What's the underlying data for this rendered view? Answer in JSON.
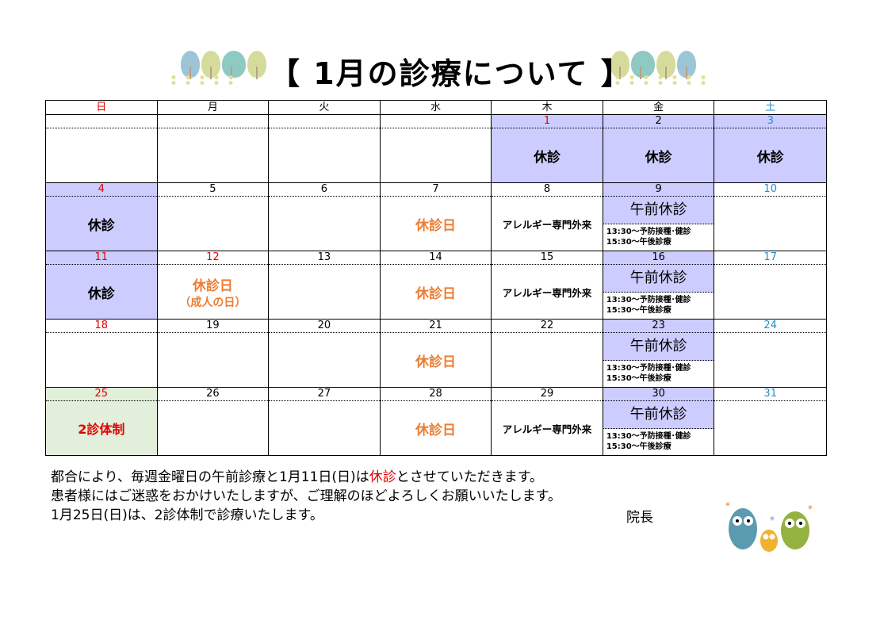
{
  "title": "【 1月の診療について 】",
  "weekdays": [
    {
      "label": "日",
      "color": "#e00000"
    },
    {
      "label": "月",
      "color": "#000"
    },
    {
      "label": "火",
      "color": "#000"
    },
    {
      "label": "水",
      "color": "#000"
    },
    {
      "label": "木",
      "color": "#000"
    },
    {
      "label": "金",
      "color": "#000"
    },
    {
      "label": "土",
      "color": "#1f8fd1"
    }
  ],
  "colors": {
    "holiday_bg": "#ccccff",
    "two_doctor_bg": "#e2efda",
    "red": "#e00000",
    "blue": "#1f8fd1",
    "orange": "#ed7d31"
  },
  "labels": {
    "closed": "休診",
    "closed_day": "休診日",
    "allergy": "アレルギー専門外来",
    "am_closed": "午前休診",
    "line1": "13:30～予防接種･健診",
    "line2": "15:30～午後診療",
    "two_doctor": "2診体制",
    "seijin": "（成人の日）"
  },
  "weeks": [
    [
      {
        "n": "",
        "c": "k"
      },
      {
        "n": "",
        "c": "k"
      },
      {
        "n": "",
        "c": "k"
      },
      {
        "n": "",
        "c": "k"
      },
      {
        "n": "1",
        "color": "red",
        "bg": "purple",
        "type": "closed"
      },
      {
        "n": "2",
        "bg": "purple",
        "type": "closed"
      },
      {
        "n": "3",
        "color": "blue",
        "bg": "purple",
        "type": "closed"
      }
    ],
    [
      {
        "n": "4",
        "color": "red",
        "bg": "purple",
        "type": "closed"
      },
      {
        "n": "5"
      },
      {
        "n": "6"
      },
      {
        "n": "7",
        "type": "closed_day"
      },
      {
        "n": "8",
        "type": "allergy"
      },
      {
        "n": "9",
        "type": "fri"
      },
      {
        "n": "10",
        "color": "blue"
      }
    ],
    [
      {
        "n": "11",
        "color": "red",
        "bg": "purple",
        "type": "closed"
      },
      {
        "n": "12",
        "color": "red",
        "type": "closed_day",
        "sub": true
      },
      {
        "n": "13"
      },
      {
        "n": "14",
        "type": "closed_day"
      },
      {
        "n": "15",
        "type": "allergy"
      },
      {
        "n": "16",
        "type": "fri"
      },
      {
        "n": "17",
        "color": "blue"
      }
    ],
    [
      {
        "n": "18",
        "color": "red"
      },
      {
        "n": "19"
      },
      {
        "n": "20"
      },
      {
        "n": "21",
        "type": "closed_day"
      },
      {
        "n": "22"
      },
      {
        "n": "23",
        "type": "fri"
      },
      {
        "n": "24",
        "color": "blue"
      }
    ],
    [
      {
        "n": "25",
        "color": "red",
        "bg": "green",
        "type": "two_doctor"
      },
      {
        "n": "26"
      },
      {
        "n": "27"
      },
      {
        "n": "28",
        "type": "closed_day"
      },
      {
        "n": "29",
        "type": "allergy"
      },
      {
        "n": "30",
        "type": "fri"
      },
      {
        "n": "31",
        "color": "blue"
      }
    ]
  ],
  "notice": {
    "l1a": "都合により、毎週金曜日の午前診療と1月11日(日)は",
    "l1b": "休診",
    "l1c": "とさせていただきます。",
    "l2": "患者様にはご迷惑をおかけいたしますが、ご理解のほどよろしくお願いいたします。",
    "l3": "1月25日(日)は、2診体制で診療いたします。",
    "sign": "院長"
  }
}
